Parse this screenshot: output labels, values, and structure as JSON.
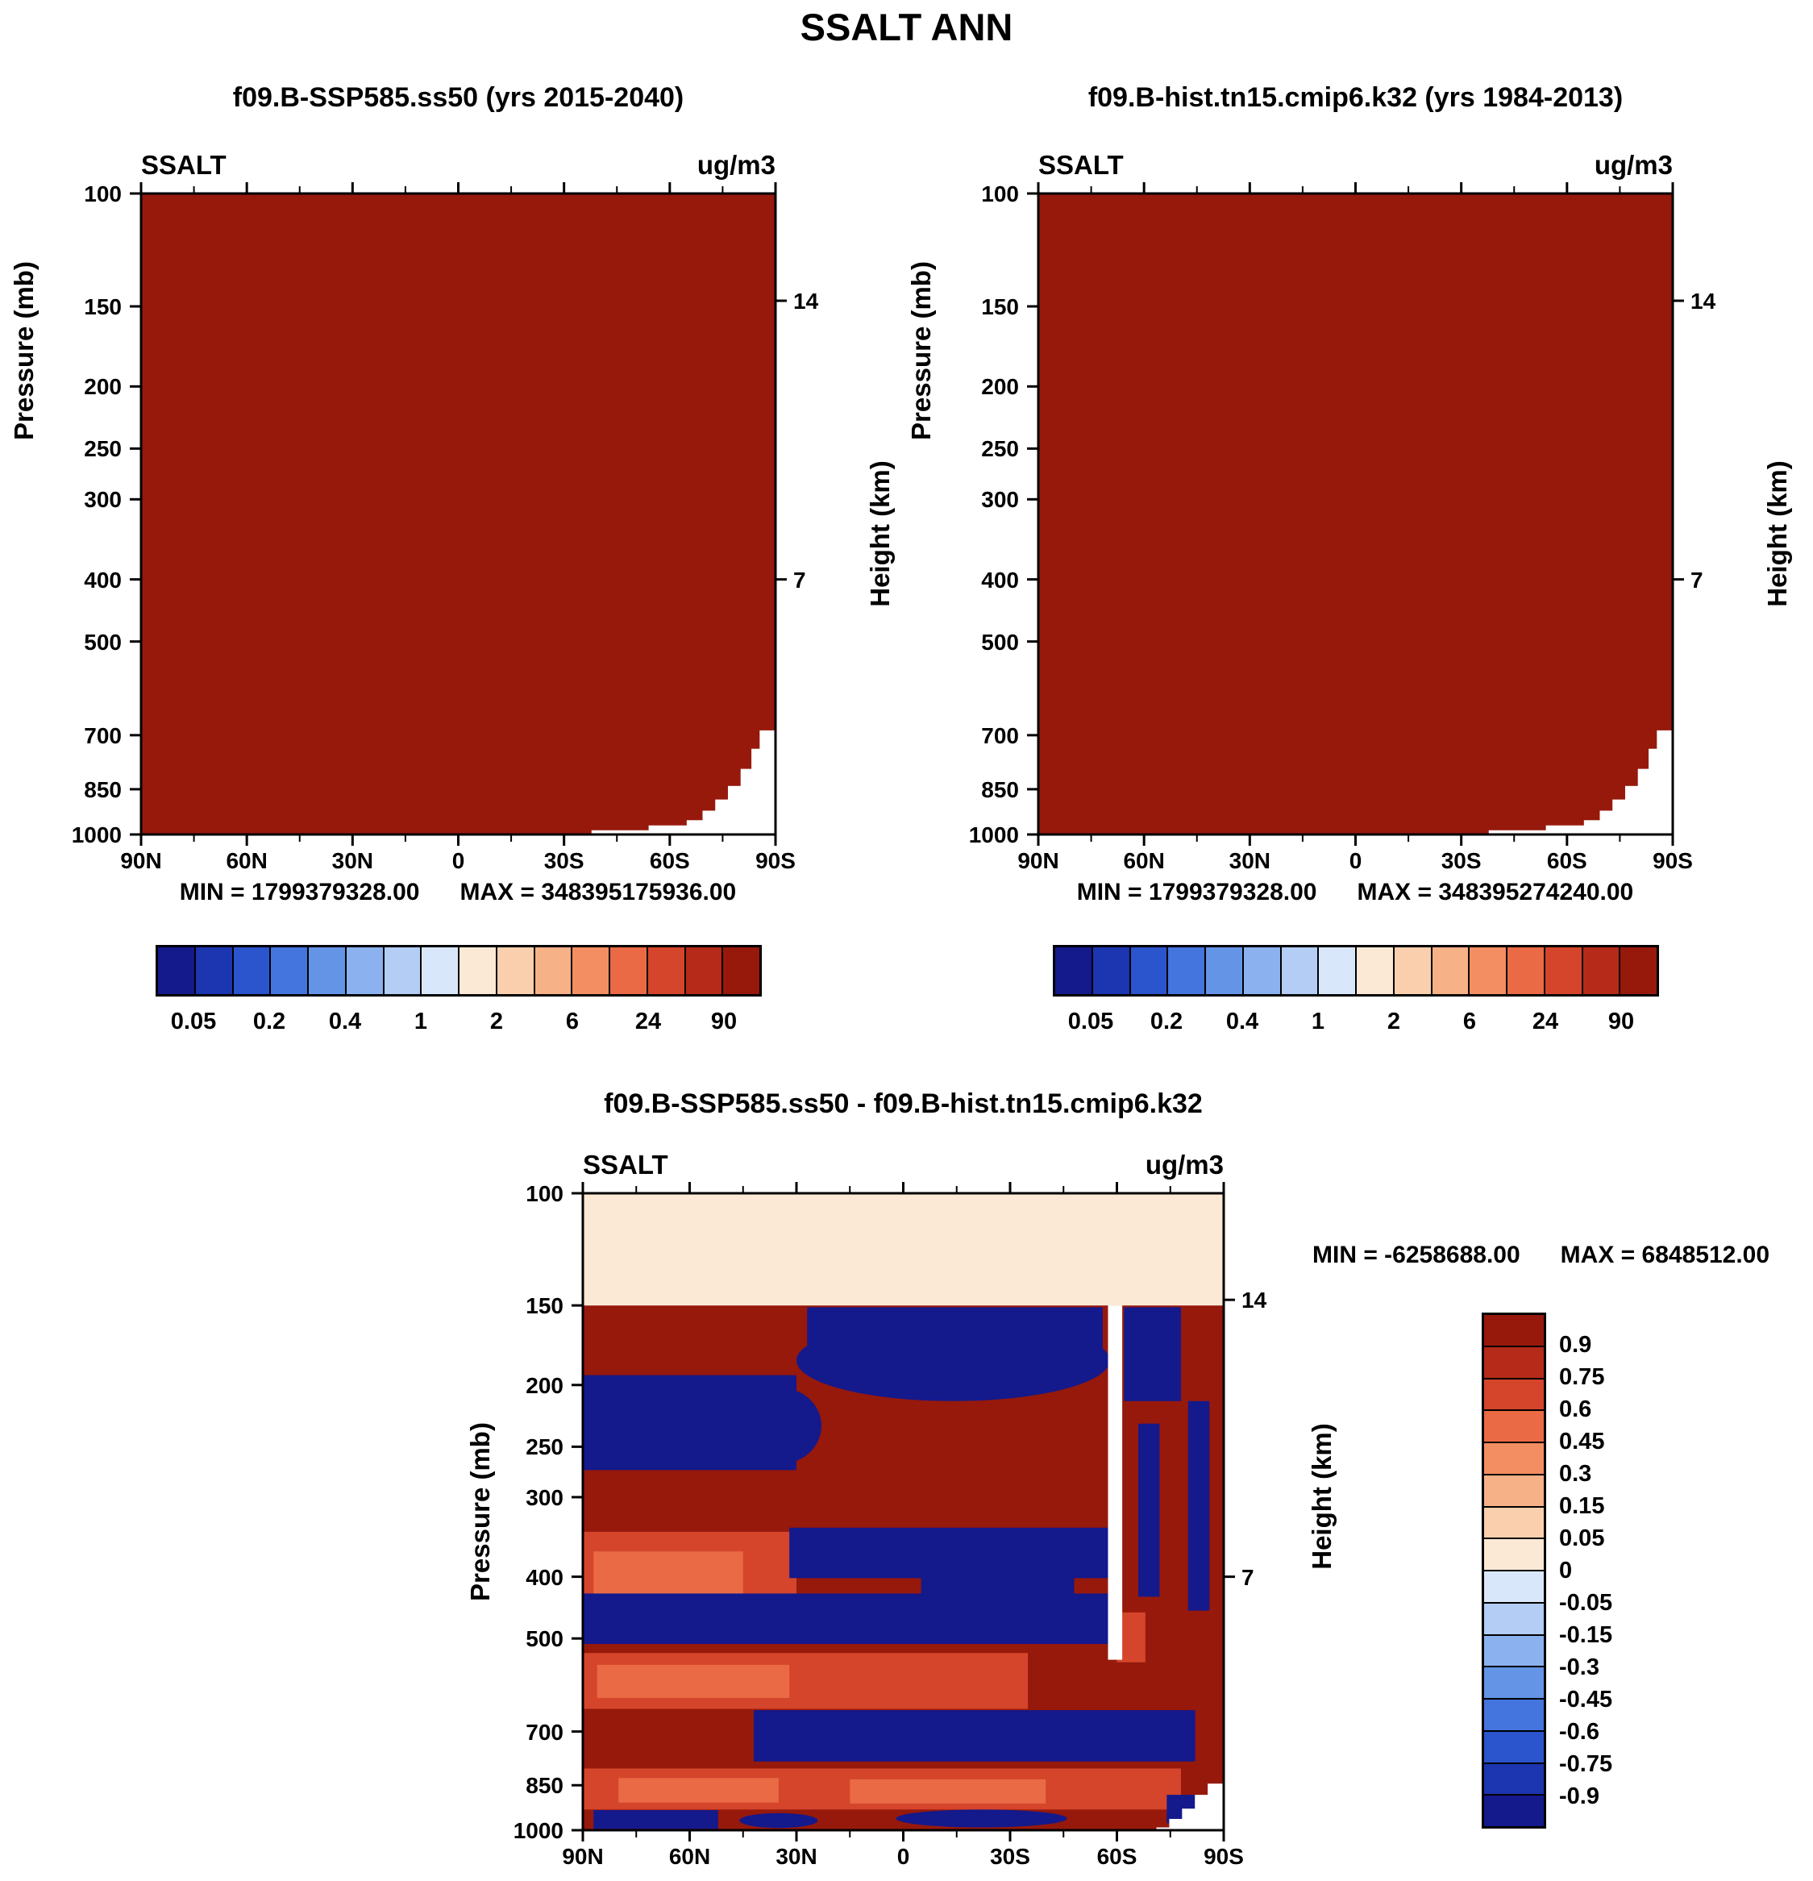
{
  "title": "SSALT ANN",
  "palette": [
    "#14198c",
    "#1c35b0",
    "#2b55cc",
    "#4474dd",
    "#6494e6",
    "#8bb2ee",
    "#b3cdf4",
    "#d9e7fa",
    "#fbe9d5",
    "#f9cfae",
    "#f6b187",
    "#f28e62",
    "#e96a44",
    "#d4452b",
    "#b52a18",
    "#96190c"
  ],
  "chart_data": [
    {
      "type": "heatmap",
      "title": "f09.B-SSP585.ss50 (yrs 2015-2040)",
      "var_label": "SSALT",
      "units": "ug/m3",
      "ylabel": "Pressure (mb)",
      "y2label": "Height (km)",
      "x_ticks": [
        "90N",
        "60N",
        "30N",
        "0",
        "30S",
        "60S",
        "90S"
      ],
      "y_ticks": [
        100,
        150,
        200,
        250,
        300,
        400,
        500,
        700,
        850,
        1000
      ],
      "y2_ticks": [
        {
          "label": "14",
          "pressure": 147
        },
        {
          "label": "7",
          "pressure": 400
        }
      ],
      "y_scale": "log",
      "stats": {
        "min_label": "MIN = 1799379328.00",
        "max_label": "MAX = 348395175936.00"
      },
      "colorbar": {
        "orientation": "horizontal",
        "labels": [
          "0.05",
          "0.2",
          "0.4",
          "1",
          "2",
          "6",
          "24",
          "90"
        ]
      },
      "fill_color_index": 15,
      "fill_note": "entire latitude-pressure section saturated above top contour level (dark red); white terrain mask over Antarctica at lower right",
      "terrain_mask_steps": [
        {
          "x0": 0.71,
          "p": 985
        },
        {
          "x0": 0.8,
          "p": 968
        },
        {
          "x0": 0.86,
          "p": 950
        },
        {
          "x0": 0.885,
          "p": 918
        },
        {
          "x0": 0.905,
          "p": 882
        },
        {
          "x0": 0.925,
          "p": 840
        },
        {
          "x0": 0.945,
          "p": 790
        },
        {
          "x0": 0.962,
          "p": 735
        },
        {
          "x0": 0.975,
          "p": 688
        }
      ]
    },
    {
      "type": "heatmap",
      "title": "f09.B-hist.tn15.cmip6.k32 (yrs 1984-2013)",
      "var_label": "SSALT",
      "units": "ug/m3",
      "ylabel": "Pressure (mb)",
      "y2label": "Height (km)",
      "x_ticks": [
        "90N",
        "60N",
        "30N",
        "0",
        "30S",
        "60S",
        "90S"
      ],
      "y_ticks": [
        100,
        150,
        200,
        250,
        300,
        400,
        500,
        700,
        850,
        1000
      ],
      "y2_ticks": [
        {
          "label": "14",
          "pressure": 147
        },
        {
          "label": "7",
          "pressure": 400
        }
      ],
      "y_scale": "log",
      "stats": {
        "min_label": "MIN = 1799379328.00",
        "max_label": "MAX = 348395274240.00"
      },
      "colorbar": {
        "orientation": "horizontal",
        "labels": [
          "0.05",
          "0.2",
          "0.4",
          "1",
          "2",
          "6",
          "24",
          "90"
        ]
      },
      "fill_color_index": 15,
      "fill_note": "entire latitude-pressure section saturated above top contour level (dark red); white terrain mask over Antarctica at lower right",
      "terrain_mask_steps": [
        {
          "x0": 0.71,
          "p": 985
        },
        {
          "x0": 0.8,
          "p": 968
        },
        {
          "x0": 0.86,
          "p": 950
        },
        {
          "x0": 0.885,
          "p": 918
        },
        {
          "x0": 0.905,
          "p": 882
        },
        {
          "x0": 0.925,
          "p": 840
        },
        {
          "x0": 0.945,
          "p": 790
        },
        {
          "x0": 0.962,
          "p": 735
        },
        {
          "x0": 0.975,
          "p": 688
        }
      ]
    },
    {
      "type": "heatmap",
      "title": "f09.B-SSP585.ss50 - f09.B-hist.tn15.cmip6.k32",
      "var_label": "SSALT",
      "units": "ug/m3",
      "ylabel": "Pressure (mb)",
      "y2label": "Height (km)",
      "x_ticks": [
        "90N",
        "60N",
        "30N",
        "0",
        "30S",
        "60S",
        "90S"
      ],
      "y_ticks": [
        100,
        150,
        200,
        250,
        300,
        400,
        500,
        700,
        850,
        1000
      ],
      "y2_ticks": [
        {
          "label": "14",
          "pressure": 147
        },
        {
          "label": "7",
          "pressure": 400
        }
      ],
      "y_scale": "log",
      "stats": {
        "min_label": "MIN = -6258688.00",
        "max_label": "MAX = 6848512.00"
      },
      "colorbar": {
        "orientation": "vertical",
        "labels": [
          "0.9",
          "0.75",
          "0.6",
          "0.45",
          "0.3",
          "0.15",
          "0.05",
          "0",
          "-0.05",
          "-0.15",
          "-0.3",
          "-0.45",
          "-0.6",
          "-0.75",
          "-0.9"
        ]
      },
      "regions_note": "difference section; lat in degrees from 90N(0) to 90S(180); color = palette index or white",
      "regions": [
        {
          "shape": "rect",
          "lat": [
            0,
            180
          ],
          "p": [
            150,
            1000
          ],
          "color": 15
        },
        {
          "shape": "rect",
          "lat": [
            0,
            180
          ],
          "p": [
            100,
            150
          ],
          "color": 8
        },
        {
          "shape": "rect",
          "lat": [
            63,
            146
          ],
          "p": [
            151,
            182
          ],
          "color": 0
        },
        {
          "shape": "ellipse",
          "lat": [
            60,
            148
          ],
          "p": [
            158,
            212
          ],
          "color": 0
        },
        {
          "shape": "rect",
          "lat": [
            0,
            60
          ],
          "p": [
            193,
            272
          ],
          "color": 0
        },
        {
          "shape": "ellipse",
          "lat": [
            44,
            67
          ],
          "p": [
            202,
            266
          ],
          "color": 0
        },
        {
          "shape": "rect",
          "lat": [
            0,
            60
          ],
          "p": [
            340,
            458
          ],
          "color": 13
        },
        {
          "shape": "rect",
          "lat": [
            3,
            45
          ],
          "p": [
            365,
            428
          ],
          "color": 12
        },
        {
          "shape": "rect",
          "lat": [
            58,
            150
          ],
          "p": [
            335,
            402
          ],
          "color": 0
        },
        {
          "shape": "rect",
          "lat": [
            95,
            138
          ],
          "p": [
            395,
            455
          ],
          "color": 0
        },
        {
          "shape": "rect",
          "lat": [
            0,
            148
          ],
          "p": [
            425,
            510
          ],
          "color": 0
        },
        {
          "shape": "rect",
          "lat": [
            0,
            125
          ],
          "p": [
            527,
            645
          ],
          "color": 13
        },
        {
          "shape": "rect",
          "lat": [
            4,
            58
          ],
          "p": [
            550,
            620
          ],
          "color": 12
        },
        {
          "shape": "rect",
          "lat": [
            48,
            172
          ],
          "p": [
            648,
            780
          ],
          "color": 0
        },
        {
          "shape": "rect",
          "lat": [
            0,
            168
          ],
          "p": [
            800,
            928
          ],
          "color": 13
        },
        {
          "shape": "rect",
          "lat": [
            10,
            55
          ],
          "p": [
            828,
            905
          ],
          "color": 12
        },
        {
          "shape": "rect",
          "lat": [
            75,
            130
          ],
          "p": [
            832,
            908
          ],
          "color": 12
        },
        {
          "shape": "rect",
          "lat": [
            3,
            38
          ],
          "p": [
            930,
            995
          ],
          "color": 0
        },
        {
          "shape": "ellipse",
          "lat": [
            44,
            66
          ],
          "p": [
            940,
            992
          ],
          "color": 0
        },
        {
          "shape": "ellipse",
          "lat": [
            88,
            136
          ],
          "p": [
            928,
            990
          ],
          "color": 0
        },
        {
          "shape": "rect",
          "lat": [
            152,
            168
          ],
          "p": [
            151,
            212
          ],
          "color": 0
        },
        {
          "shape": "rect",
          "lat": [
            156,
            162
          ],
          "p": [
            230,
            430
          ],
          "color": 0
        },
        {
          "shape": "rect",
          "lat": [
            170,
            176
          ],
          "p": [
            212,
            452
          ],
          "color": 0
        },
        {
          "shape": "rect",
          "lat": [
            150,
            158
          ],
          "p": [
            455,
            545
          ],
          "color": 13
        },
        {
          "shape": "rect",
          "lat": [
            164,
            174
          ],
          "p": [
            880,
            975
          ],
          "color": 0
        },
        {
          "shape": "rect",
          "lat": [
            147.5,
            151.5
          ],
          "p": [
            150,
            540
          ],
          "color": "white"
        }
      ],
      "terrain_mask_steps": [
        {
          "x0": 0.895,
          "p": 990
        },
        {
          "x0": 0.915,
          "p": 960
        },
        {
          "x0": 0.935,
          "p": 925
        },
        {
          "x0": 0.955,
          "p": 880
        },
        {
          "x0": 0.975,
          "p": 845
        }
      ]
    }
  ]
}
